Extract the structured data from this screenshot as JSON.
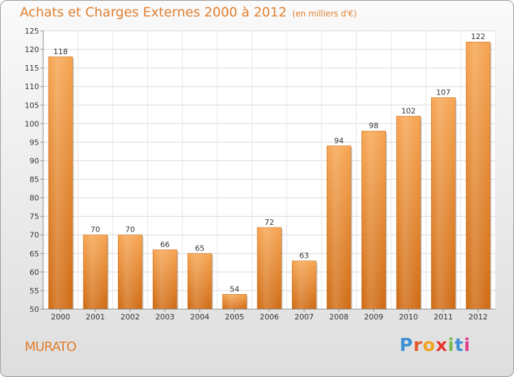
{
  "chart_data": {
    "type": "bar",
    "title": "Achats et Charges Externes 2000 à 2012",
    "subtitle": "(en milliers d'€)",
    "categories": [
      "2000",
      "2001",
      "2002",
      "2003",
      "2004",
      "2005",
      "2006",
      "2007",
      "2008",
      "2009",
      "2010",
      "2011",
      "2012"
    ],
    "values": [
      118,
      70,
      70,
      66,
      65,
      54,
      72,
      63,
      94,
      98,
      102,
      107,
      122
    ],
    "yticks": [
      50,
      55,
      60,
      65,
      70,
      75,
      80,
      85,
      90,
      95,
      100,
      105,
      110,
      115,
      120,
      125
    ],
    "ylim": [
      50,
      125
    ],
    "grid": true,
    "bar_color": "#f0922f"
  },
  "footer": {
    "location": "MURATO",
    "logo_text": "Proxiti",
    "logo_colors": [
      "#3d8fd6",
      "#e6582a",
      "#f4a11f",
      "#e6362e",
      "#7ab94c",
      "#3d8fd6",
      "#e23a8c"
    ]
  }
}
